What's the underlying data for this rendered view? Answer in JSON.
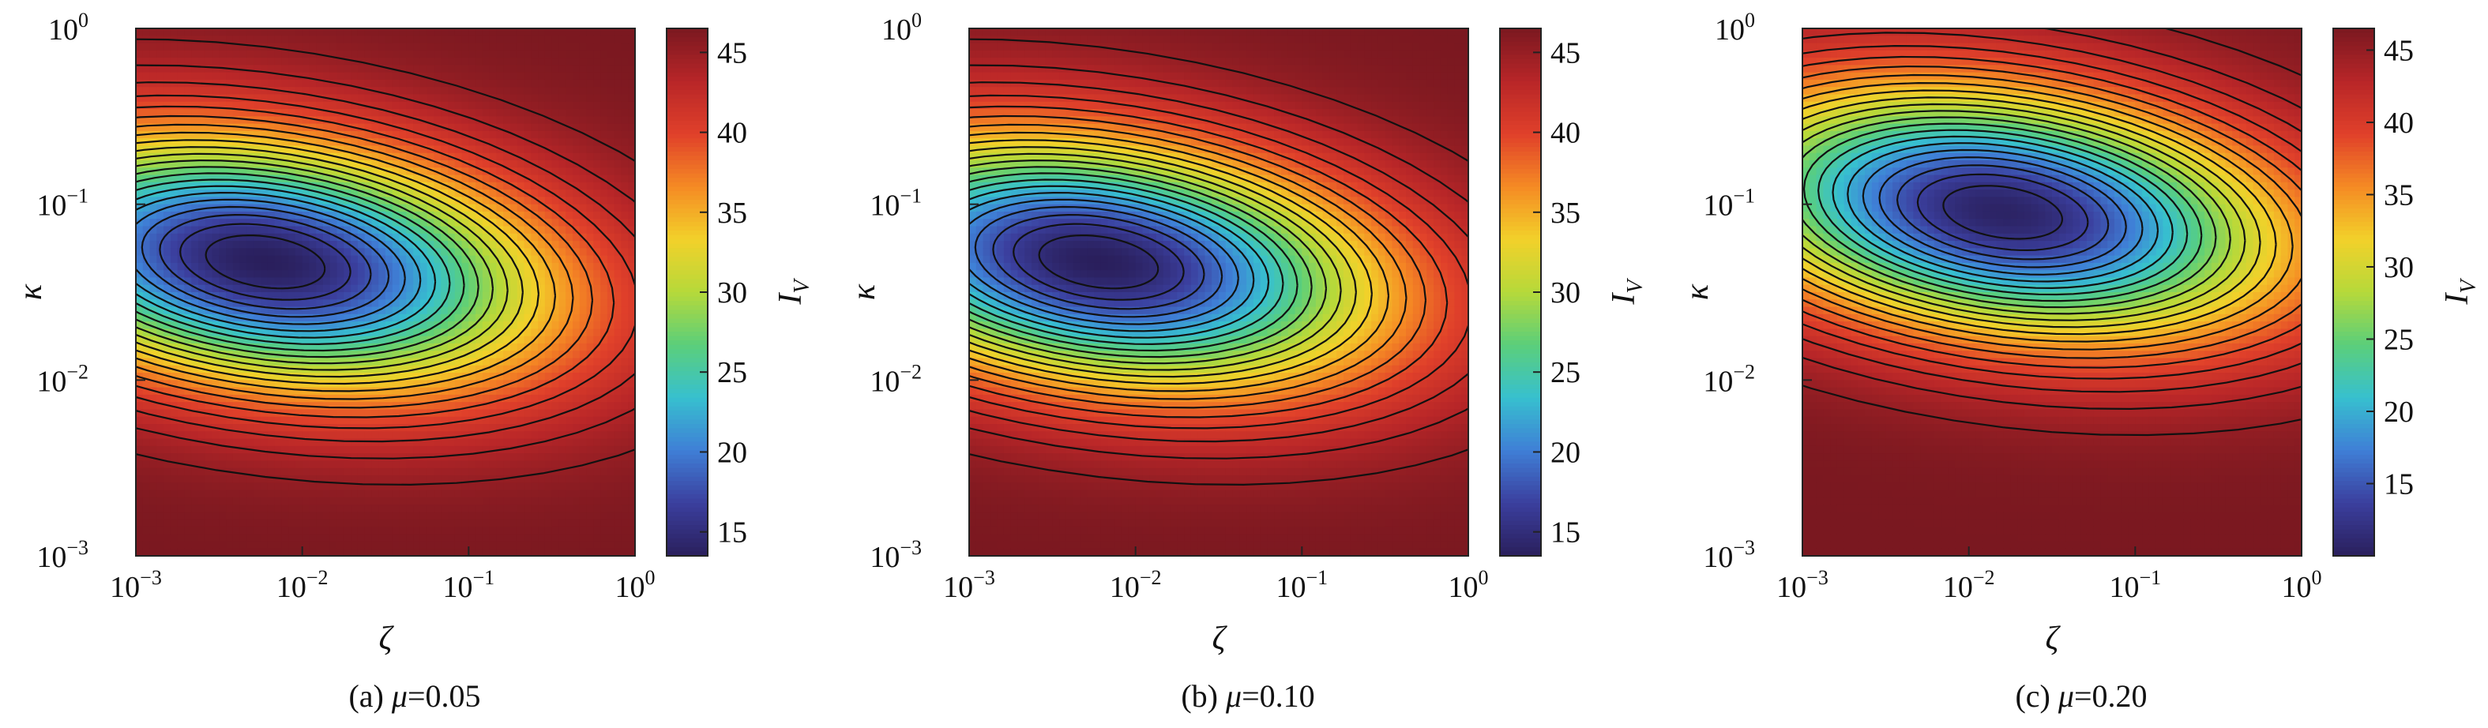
{
  "chart_data": [
    {
      "type": "heatmap",
      "subtype": "filled-contour",
      "caption_prefix": "(a)",
      "caption_param": "μ",
      "caption_value": "=0.05",
      "xlabel": "ζ",
      "ylabel": "κ",
      "xscale": "log",
      "yscale": "log",
      "xlim": [
        0.001,
        1
      ],
      "ylim": [
        0.001,
        1
      ],
      "x_ticks": [
        {
          "base": "10",
          "exp": "−3"
        },
        {
          "base": "10",
          "exp": "−2"
        },
        {
          "base": "10",
          "exp": "−1"
        },
        {
          "base": "10",
          "exp": "0"
        }
      ],
      "y_ticks": [
        {
          "base": "10",
          "exp": "−3"
        },
        {
          "base": "10",
          "exp": "−2"
        },
        {
          "base": "10",
          "exp": "−1"
        },
        {
          "base": "10",
          "exp": "0"
        }
      ],
      "colorbar_label": "I",
      "colorbar_label_sub": "V",
      "colorbar_range": [
        13.5,
        46.5
      ],
      "colorbar_ticks": [
        "15",
        "20",
        "25",
        "30",
        "35",
        "40",
        "45"
      ],
      "colorbar_tick_values": [
        15,
        20,
        25,
        30,
        35,
        40,
        45
      ],
      "field": {
        "min_zeta": 0.006,
        "min_kappa": 0.047,
        "min_value": 13.5,
        "max_value": 46.5
      },
      "colormap": [
        "#2a1f5c",
        "#3b3f9e",
        "#3f7fd6",
        "#37c0cf",
        "#5bcf7a",
        "#b6d93a",
        "#f2d12a",
        "#f58a24",
        "#e0402a",
        "#b82628",
        "#7a1820"
      ]
    },
    {
      "type": "heatmap",
      "subtype": "filled-contour",
      "caption_prefix": "(b)",
      "caption_param": "μ",
      "caption_value": "=0.10",
      "xlabel": "ζ",
      "ylabel": "κ",
      "xscale": "log",
      "yscale": "log",
      "xlim": [
        0.001,
        1
      ],
      "ylim": [
        0.001,
        1
      ],
      "x_ticks": [
        {
          "base": "10",
          "exp": "−3"
        },
        {
          "base": "10",
          "exp": "−2"
        },
        {
          "base": "10",
          "exp": "−1"
        },
        {
          "base": "10",
          "exp": "0"
        }
      ],
      "y_ticks": [
        {
          "base": "10",
          "exp": "−3"
        },
        {
          "base": "10",
          "exp": "−2"
        },
        {
          "base": "10",
          "exp": "−1"
        },
        {
          "base": "10",
          "exp": "0"
        }
      ],
      "colorbar_label": "I",
      "colorbar_label_sub": "V",
      "colorbar_range": [
        13.5,
        46.5
      ],
      "colorbar_ticks": [
        "15",
        "20",
        "25",
        "30",
        "35",
        "40",
        "45"
      ],
      "colorbar_tick_values": [
        15,
        20,
        25,
        30,
        35,
        40,
        45
      ],
      "field": {
        "min_zeta": 0.006,
        "min_kappa": 0.047,
        "min_value": 13.5,
        "max_value": 46.5
      },
      "colormap": [
        "#2a1f5c",
        "#3b3f9e",
        "#3f7fd6",
        "#37c0cf",
        "#5bcf7a",
        "#b6d93a",
        "#f2d12a",
        "#f58a24",
        "#e0402a",
        "#b82628",
        "#7a1820"
      ]
    },
    {
      "type": "heatmap",
      "subtype": "filled-contour",
      "caption_prefix": "(c)",
      "caption_param": "μ",
      "caption_value": "=0.20",
      "xlabel": "ζ",
      "ylabel": "κ",
      "xscale": "log",
      "yscale": "log",
      "xlim": [
        0.001,
        1
      ],
      "ylim": [
        0.001,
        1
      ],
      "x_ticks": [
        {
          "base": "10",
          "exp": "−3"
        },
        {
          "base": "10",
          "exp": "−2"
        },
        {
          "base": "10",
          "exp": "−1"
        },
        {
          "base": "10",
          "exp": "0"
        }
      ],
      "y_ticks": [
        {
          "base": "10",
          "exp": "−3"
        },
        {
          "base": "10",
          "exp": "−2"
        },
        {
          "base": "10",
          "exp": "−1"
        },
        {
          "base": "10",
          "exp": "0"
        }
      ],
      "colorbar_label": "I",
      "colorbar_label_sub": "V",
      "colorbar_range": [
        10,
        46.5
      ],
      "colorbar_ticks": [
        "15",
        "20",
        "25",
        "30",
        "35",
        "40",
        "45"
      ],
      "colorbar_tick_values": [
        15,
        20,
        25,
        30,
        35,
        40,
        45
      ],
      "field": {
        "min_zeta": 0.016,
        "min_kappa": 0.09,
        "min_value": 10.5,
        "max_value": 46.5
      },
      "colormap": [
        "#2a1f5c",
        "#3b3f9e",
        "#3f7fd6",
        "#37c0cf",
        "#5bcf7a",
        "#b6d93a",
        "#f2d12a",
        "#f58a24",
        "#e0402a",
        "#b82628",
        "#7a1820"
      ]
    }
  ]
}
